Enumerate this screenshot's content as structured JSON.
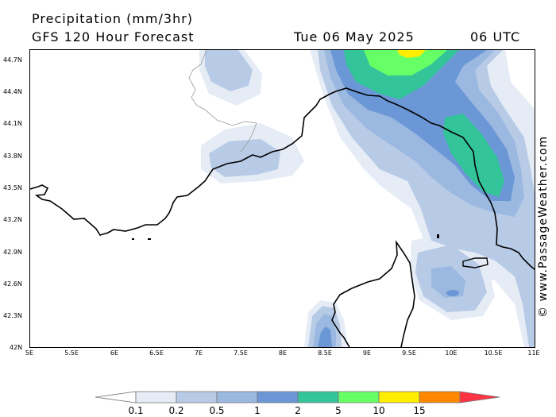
{
  "header": {
    "title": "Precipitation (mm/3hr)",
    "subtitle": "GFS 120 Hour Forecast",
    "datetime": "Tue 06 May 2025",
    "time": "06 UTC"
  },
  "credit": "© www.PassageWeather.com",
  "axes": {
    "lat_labels": [
      "44.7N",
      "44.4N",
      "44.1N",
      "43.8N",
      "43.5N",
      "43.2N",
      "42.9N",
      "42.6N",
      "42.3N",
      "42N"
    ],
    "lon_labels": [
      "5E",
      "5.5E",
      "6E",
      "6.5E",
      "7E",
      "7.5E",
      "8E",
      "8.5E",
      "9E",
      "9.5E",
      "10E",
      "10.5E",
      "11E"
    ]
  },
  "legend": {
    "values": [
      "0.1",
      "0.2",
      "0.5",
      "1",
      "2",
      "5",
      "10",
      "15"
    ],
    "colors": [
      "#e6ecf6",
      "#b8cbe6",
      "#9ab8e0",
      "#6b97d6",
      "#33c49a",
      "#66ff66",
      "#ffee00",
      "#ff8800",
      "#ff3344"
    ]
  }
}
